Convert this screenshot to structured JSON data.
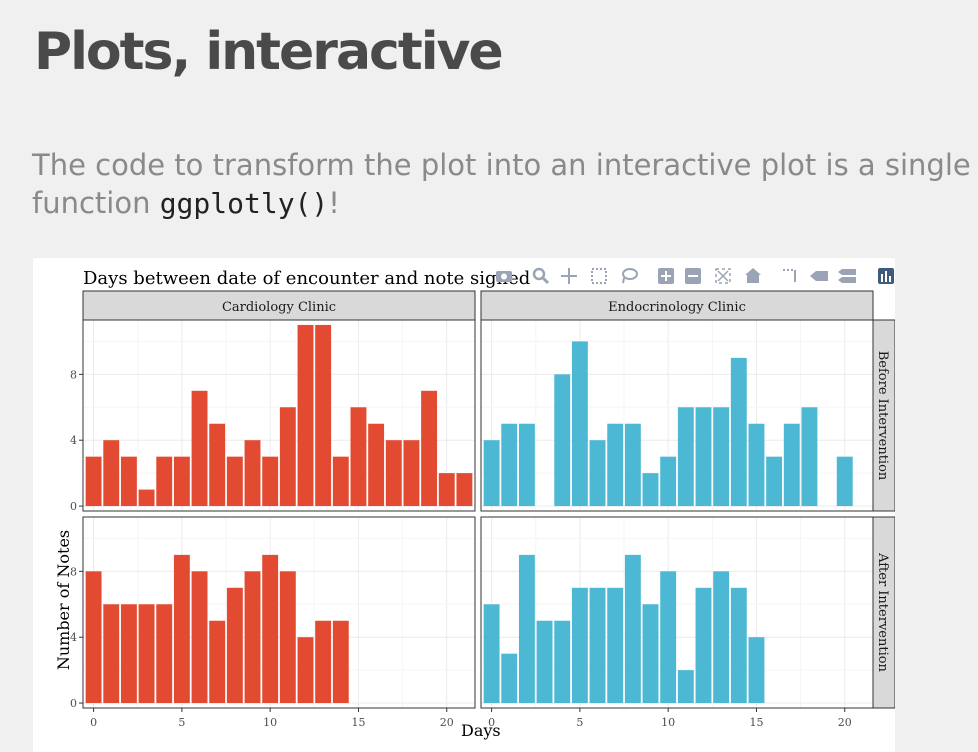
{
  "slide": {
    "title": "Plots, interactive",
    "text_before": "The code to transform the plot into an interactive plot is a single function ",
    "code": "ggplotly()",
    "text_after": "!"
  },
  "modebar": {
    "icons": [
      "camera-icon",
      "zoom-icon",
      "pan-icon",
      "box-select-icon",
      "lasso-select-icon",
      "zoom-in-icon",
      "zoom-out-icon",
      "autoscale-icon",
      "reset-axes-icon",
      "spike-lines-icon",
      "hover-closest-icon",
      "hover-compare-icon",
      "plotly-logo-icon"
    ]
  },
  "chart_data": {
    "type": "bar",
    "title": "Days between date of encounter and note signed",
    "xlabel": "Days",
    "ylabel": "Number of Notes",
    "colors": {
      "Cardiology Clinic": "#e24b32",
      "Endocrinology Clinic": "#4cb8d4"
    },
    "facet_columns": [
      "Cardiology Clinic",
      "Endocrinology Clinic"
    ],
    "facet_rows": [
      "Before Intervention",
      "After Intervention"
    ],
    "xlim": [
      -0.6,
      21.6
    ],
    "xticks": [
      0,
      5,
      10,
      15,
      20
    ],
    "yticks": [
      0,
      4,
      8
    ],
    "ylim": [
      -0.3,
      11.3
    ],
    "grid": true,
    "panels": [
      {
        "column": "Cardiology Clinic",
        "row": "Before Intervention",
        "x": [
          0,
          1,
          2,
          3,
          4,
          5,
          6,
          7,
          8,
          9,
          10,
          11,
          12,
          13,
          14,
          15,
          16,
          17,
          18,
          19,
          20,
          21
        ],
        "values": [
          3,
          4,
          3,
          1,
          3,
          3,
          7,
          5,
          3,
          4,
          3,
          6,
          11,
          11,
          3,
          6,
          5,
          4,
          4,
          7,
          2,
          2
        ]
      },
      {
        "column": "Endocrinology Clinic",
        "row": "Before Intervention",
        "x": [
          0,
          1,
          2,
          4,
          5,
          6,
          7,
          8,
          9,
          10,
          11,
          12,
          13,
          14,
          15,
          16,
          17,
          18,
          20
        ],
        "values": [
          4,
          5,
          5,
          8,
          10,
          4,
          5,
          5,
          2,
          3,
          6,
          6,
          6,
          9,
          5,
          3,
          5,
          6,
          3
        ]
      },
      {
        "column": "Cardiology Clinic",
        "row": "After Intervention",
        "x": [
          0,
          1,
          2,
          3,
          4,
          5,
          6,
          7,
          8,
          9,
          10,
          11,
          12,
          13,
          14
        ],
        "values": [
          8,
          6,
          6,
          6,
          6,
          9,
          8,
          5,
          7,
          8,
          9,
          8,
          4,
          5,
          5
        ]
      },
      {
        "column": "Endocrinology Clinic",
        "row": "After Intervention",
        "x": [
          0,
          1,
          2,
          3,
          4,
          5,
          6,
          7,
          8,
          9,
          10,
          11,
          12,
          13,
          14,
          15
        ],
        "values": [
          6,
          3,
          9,
          5,
          5,
          7,
          7,
          7,
          9,
          6,
          8,
          2,
          7,
          8,
          7,
          4
        ]
      }
    ]
  }
}
